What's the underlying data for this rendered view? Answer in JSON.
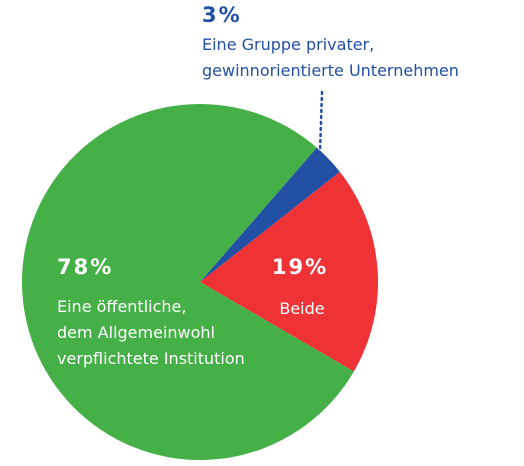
{
  "chart_data": {
    "type": "pie",
    "values": [
      3,
      19,
      78
    ],
    "value_labels": [
      "3%",
      "19%",
      "78%"
    ],
    "labels": [
      [
        "Eine Gruppe privater,",
        "gewinnorientierte Unternehmen"
      ],
      [
        "Beide"
      ],
      [
        "Eine öffentliche,",
        "dem Allgemeinwohl",
        "verpflichtete Institution"
      ]
    ],
    "colors": [
      "#2150a5",
      "#ee3236",
      "#45b047"
    ]
  }
}
